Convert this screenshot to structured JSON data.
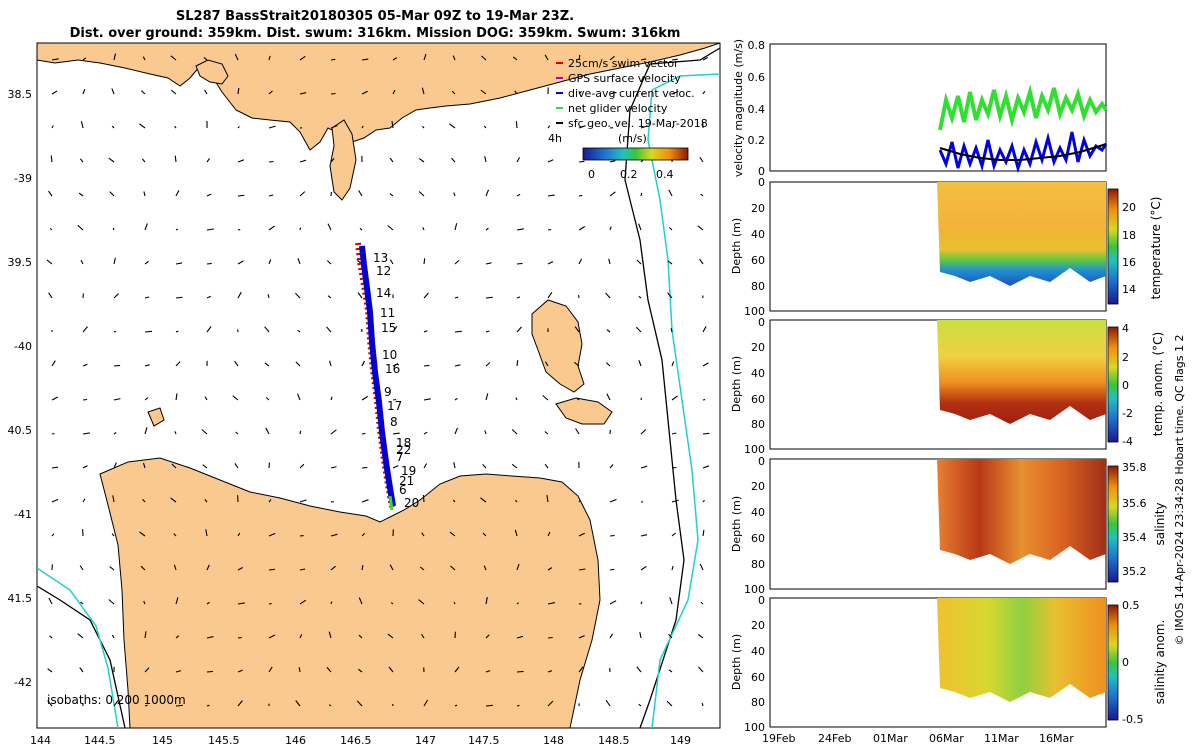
{
  "header": {
    "title_line1": "SL287 BassStrait20180305 05-Mar 09Z to 19-Mar 23Z.",
    "title_line2": "Dist. over ground: 359km. Dist. swum: 316km. Mission DOG: 359km. Swum: 316km"
  },
  "map": {
    "lon_ticks": [
      "144",
      "144.5",
      "145",
      "145.5",
      "146",
      "146.5",
      "147",
      "147.5",
      "148",
      "148.5",
      "149"
    ],
    "lat_ticks": [
      "38.5",
      "-39",
      "39.5",
      "-40",
      "40.5",
      "-41",
      "41.5",
      "-42"
    ],
    "isobath_label": "isobaths: 0   200  1000m",
    "legend": [
      {
        "label": "25cm/s swim vector",
        "color": "#d00000"
      },
      {
        "label": "GPS surface velocity",
        "color": "#b000b0"
      },
      {
        "label": "dive-avg current veloc.",
        "color": "#0000e0"
      },
      {
        "label": "net glider velocity",
        "color": "#30e030"
      },
      {
        "label": "sfc geo. vel. 19-Mar-2018",
        "color": "#000000"
      }
    ],
    "colorbar_left_label": "4h",
    "colorbar_unit": "(m/s)",
    "colorbar_ticks": [
      "0",
      "0.2",
      "0.4"
    ],
    "day_labels": [
      "13",
      "12",
      "14",
      "11",
      "15",
      "10",
      "16",
      "9",
      "17",
      "8",
      "18",
      "22",
      "7",
      "19",
      "21",
      "6",
      "20"
    ],
    "land_color": "#f9c98f",
    "track_color": "#0000d0",
    "isobath_200_color": "#000000",
    "isobath_1000_color": "#20d0d0"
  },
  "panels": {
    "date_ticks": [
      "19Feb",
      "24Feb",
      "01Mar",
      "06Mar",
      "11Mar",
      "16Mar"
    ],
    "velocity": {
      "ylabel": "velocity magnitude (m/s)",
      "yticks": [
        "0.8",
        "0.6",
        "0.4",
        "0.2",
        "0"
      ]
    },
    "depth_ticks": [
      "0",
      "20",
      "40",
      "60",
      "80",
      "100"
    ],
    "depth_label": "Depth (m)",
    "temperature": {
      "cb_label": "temperature (°C)",
      "cb_ticks": [
        "20",
        "18",
        "16",
        "14"
      ]
    },
    "temp_anom": {
      "cb_label": "temp. anom. (°C)",
      "cb_ticks": [
        "4",
        "2",
        "0",
        "-2",
        "-4"
      ]
    },
    "salinity": {
      "cb_label": "salinity",
      "cb_ticks": [
        "35.8",
        "35.6",
        "35.4",
        "35.2"
      ]
    },
    "sal_anom": {
      "cb_label": "salinity anom.",
      "cb_ticks": [
        "0.5",
        "0",
        "-0.5"
      ]
    },
    "side_note": "© IMOS 14-Apr-2024 23:34:28 Hobart time. QC flags 1  2"
  }
}
